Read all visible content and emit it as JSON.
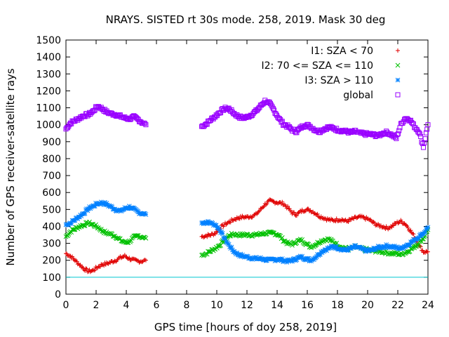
{
  "chart_data": {
    "type": "scatter",
    "title": "NRAYS. SISTED rt 30s mode. 258, 2019. Mask 30 deg",
    "xlabel": "GPS time [hours of doy 258, 2019]",
    "ylabel": "Number of GPS receiver-satellite rays",
    "xlim": [
      0,
      24
    ],
    "ylim": [
      0,
      1500
    ],
    "xticks": [
      "0",
      "2",
      "4",
      "6",
      "8",
      "10",
      "12",
      "14",
      "16",
      "18",
      "20",
      "22",
      "24"
    ],
    "yticks": [
      "0",
      "100",
      "200",
      "300",
      "400",
      "500",
      "600",
      "700",
      "800",
      "900",
      "1000",
      "1100",
      "1200",
      "1300",
      "1400",
      "1500"
    ],
    "grid": false,
    "legend_position": "top-right",
    "reference_line": {
      "y": 100,
      "color": "#00c8d0"
    },
    "series": [
      {
        "name": "I1: SZA < 70",
        "marker": "+",
        "color": "#e00000",
        "segments": [
          {
            "x": [
              0,
              0.3,
              0.6,
              0.9,
              1.2,
              1.5,
              1.8,
              2.1,
              2.4,
              2.7,
              3.0,
              3.3,
              3.6,
              3.9,
              4.2,
              4.5,
              4.8,
              5.1,
              5.3
            ],
            "y": [
              240,
              225,
              200,
              175,
              150,
              135,
              140,
              160,
              175,
              180,
              190,
              200,
              215,
              225,
              210,
              200,
              195,
              195,
              200
            ]
          },
          {
            "x": [
              9.0,
              9.3,
              9.6,
              9.9,
              10.2,
              10.5,
              10.8,
              11.1,
              11.4,
              11.7,
              12.0,
              12.3,
              12.6,
              12.9,
              13.2,
              13.5,
              13.8,
              14.1,
              14.4,
              14.7,
              15.0,
              15.3,
              15.6,
              15.9,
              16.2,
              16.5,
              16.8,
              17.1,
              17.4,
              17.7,
              18.0,
              18.3,
              18.6,
              18.9,
              19.2,
              19.5,
              19.8,
              20.1,
              20.4,
              20.7,
              21.0,
              21.3,
              21.6,
              21.9,
              22.2,
              22.5,
              22.8,
              23.1,
              23.4,
              23.7,
              24.0
            ],
            "y": [
              340,
              345,
              350,
              360,
              390,
              410,
              425,
              440,
              450,
              455,
              455,
              460,
              470,
              500,
              530,
              550,
              545,
              540,
              535,
              510,
              480,
              470,
              490,
              500,
              495,
              480,
              460,
              450,
              440,
              435,
              440,
              440,
              430,
              440,
              450,
              455,
              450,
              440,
              420,
              405,
              400,
              390,
              400,
              420,
              430,
              415,
              380,
              340,
              290,
              250,
              250
            ]
          }
        ]
      },
      {
        "name": "I2: 70 <= SZA <= 110",
        "marker": "x",
        "color": "#00c000",
        "segments": [
          {
            "x": [
              0,
              0.3,
              0.6,
              0.9,
              1.2,
              1.5,
              1.8,
              2.1,
              2.4,
              2.7,
              3.0,
              3.3,
              3.6,
              3.9,
              4.2,
              4.5,
              4.8,
              5.1,
              5.3
            ],
            "y": [
              340,
              370,
              385,
              400,
              410,
              420,
              410,
              395,
              375,
              360,
              355,
              340,
              320,
              305,
              310,
              335,
              345,
              335,
              330
            ]
          },
          {
            "x": [
              9.0,
              9.3,
              9.6,
              9.9,
              10.2,
              10.5,
              10.8,
              11.1,
              11.4,
              11.7,
              12.0,
              12.3,
              12.6,
              12.9,
              13.2,
              13.5,
              13.8,
              14.1,
              14.4,
              14.7,
              15.0,
              15.3,
              15.6,
              15.9,
              16.2,
              16.5,
              16.8,
              17.1,
              17.4,
              17.7,
              18.0,
              18.3,
              18.6,
              18.9,
              19.2,
              19.5,
              19.8,
              20.1,
              20.4,
              20.7,
              21.0,
              21.3,
              21.6,
              21.9,
              22.2,
              22.5,
              22.8,
              23.1,
              23.4,
              23.7,
              24.0
            ],
            "y": [
              230,
              240,
              255,
              270,
              290,
              320,
              345,
              355,
              350,
              350,
              350,
              350,
              350,
              355,
              360,
              360,
              360,
              350,
              320,
              300,
              295,
              310,
              320,
              300,
              280,
              290,
              310,
              320,
              325,
              310,
              290,
              275,
              270,
              270,
              280,
              270,
              265,
              260,
              255,
              255,
              250,
              245,
              240,
              240,
              235,
              245,
              260,
              280,
              300,
              330,
              380
            ]
          }
        ]
      },
      {
        "name": "I3: SZA > 110",
        "marker": "*",
        "color": "#0080ff",
        "segments": [
          {
            "x": [
              0,
              0.3,
              0.6,
              0.9,
              1.2,
              1.5,
              1.8,
              2.1,
              2.4,
              2.7,
              3.0,
              3.3,
              3.6,
              3.9,
              4.2,
              4.5,
              4.8,
              5.1,
              5.3
            ],
            "y": [
              410,
              420,
              440,
              460,
              480,
              505,
              520,
              535,
              540,
              530,
              515,
              500,
              490,
              505,
              515,
              500,
              485,
              475,
              470
            ]
          },
          {
            "x": [
              9.0,
              9.3,
              9.6,
              9.9,
              10.2,
              10.5,
              10.8,
              11.1,
              11.4,
              11.7,
              12.0,
              12.3,
              12.6,
              12.9,
              13.2,
              13.5,
              13.8,
              14.1,
              14.4,
              14.7,
              15.0,
              15.3,
              15.6,
              15.9,
              16.2,
              16.5,
              16.8,
              17.1,
              17.4,
              17.7,
              18.0,
              18.3,
              18.6,
              18.9,
              19.2,
              19.5,
              19.8,
              20.1,
              20.4,
              20.7,
              21.0,
              21.3,
              21.6,
              21.9,
              22.2,
              22.5,
              22.8,
              23.1,
              23.4,
              23.7,
              24.0
            ],
            "y": [
              420,
              425,
              420,
              410,
              380,
              330,
              290,
              255,
              235,
              225,
              220,
              215,
              210,
              210,
              205,
              200,
              205,
              205,
              200,
              195,
              200,
              210,
              220,
              210,
              200,
              215,
              240,
              260,
              270,
              280,
              275,
              265,
              260,
              270,
              280,
              270,
              260,
              255,
              265,
              275,
              280,
              285,
              280,
              275,
              270,
              285,
              300,
              320,
              340,
              360,
              395
            ]
          }
        ]
      },
      {
        "name": "global",
        "marker": "square",
        "color": "#9900ff",
        "segments": [
          {
            "x": [
              0,
              0.3,
              0.6,
              0.9,
              1.2,
              1.5,
              1.8,
              2.1,
              2.4,
              2.7,
              3.0,
              3.3,
              3.6,
              3.9,
              4.2,
              4.5,
              4.8,
              5.1,
              5.3
            ],
            "y": [
              975,
              1010,
              1025,
              1040,
              1055,
              1060,
              1080,
              1110,
              1095,
              1075,
              1065,
              1060,
              1050,
              1040,
              1035,
              1045,
              1030,
              1010,
              1000
            ]
          },
          {
            "x": [
              9.0,
              9.3,
              9.6,
              9.9,
              10.2,
              10.5,
              10.8,
              11.1,
              11.4,
              11.7,
              12.0,
              12.3,
              12.6,
              12.9,
              13.2,
              13.5,
              13.8,
              14.1,
              14.4,
              14.7,
              15.0,
              15.3,
              15.6,
              15.9,
              16.2,
              16.5,
              16.8,
              17.1,
              17.4,
              17.7,
              18.0,
              18.3,
              18.6,
              18.9,
              19.2,
              19.5,
              19.8,
              20.1,
              20.4,
              20.7,
              21.0,
              21.3,
              21.6,
              21.9,
              22.2,
              22.5,
              22.8,
              23.1,
              23.4,
              23.7,
              24.0
            ],
            "y": [
              990,
              1005,
              1030,
              1050,
              1075,
              1095,
              1095,
              1070,
              1050,
              1040,
              1045,
              1060,
              1080,
              1110,
              1140,
              1125,
              1085,
              1040,
              1005,
              990,
              970,
              960,
              985,
              1000,
              990,
              970,
              960,
              975,
              985,
              980,
              970,
              965,
              960,
              955,
              960,
              950,
              945,
              945,
              940,
              935,
              950,
              955,
              940,
              920,
              1000,
              1040,
              1030,
              990,
              960,
              870,
              1000
            ]
          }
        ]
      }
    ]
  }
}
